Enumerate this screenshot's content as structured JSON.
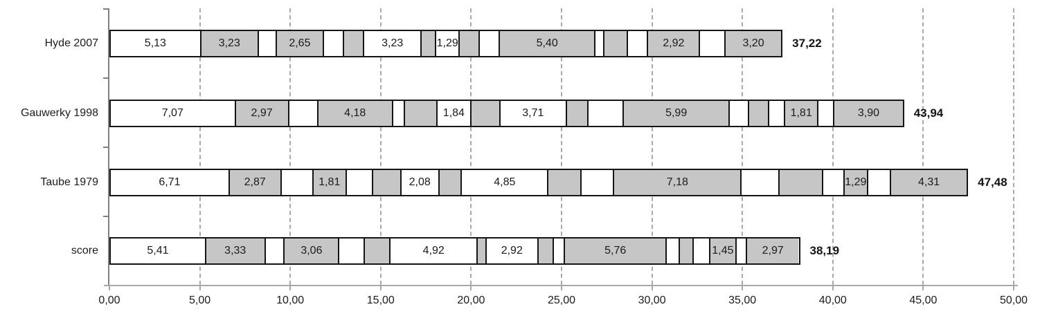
{
  "chart_data": {
    "type": "bar",
    "variant": "horizontal-stacked",
    "title": "",
    "xlabel": "",
    "ylabel": "",
    "xlim": [
      0,
      50
    ],
    "x_tick_values": [
      0,
      5,
      10,
      15,
      20,
      25,
      30,
      35,
      40,
      45,
      50
    ],
    "x_ticks": [
      "0,00",
      "5,00",
      "10,00",
      "15,00",
      "20,00",
      "25,00",
      "30,00",
      "35,00",
      "40,00",
      "45,00",
      "50,00"
    ],
    "grid": "vertical-dashed",
    "legend": "none",
    "colors": {
      "white_segment": "#ffffff",
      "gray_segment": "#c6c6c6",
      "segment_border": "#141414",
      "gridline": "#a9a9a9",
      "axis": "#a8a8a8",
      "text": "#1c1c1c"
    },
    "rows": [
      {
        "label": "Hyde 2007",
        "total": 37.22,
        "total_label": "37,22",
        "segments": [
          {
            "value": 5.13,
            "label": "5,13",
            "fill": "white"
          },
          {
            "value": 3.23,
            "label": "3,23",
            "fill": "gray"
          },
          {
            "value": 0.95,
            "label": "",
            "fill": "white"
          },
          {
            "value": 2.65,
            "label": "2,65",
            "fill": "gray"
          },
          {
            "value": 1.05,
            "label": "",
            "fill": "white"
          },
          {
            "value": 1.1,
            "label": "",
            "fill": "gray"
          },
          {
            "value": 3.23,
            "label": "3,23",
            "fill": "white"
          },
          {
            "value": 0.75,
            "label": "",
            "fill": "gray"
          },
          {
            "value": 1.29,
            "label": "1,29",
            "fill": "white"
          },
          {
            "value": 1.05,
            "label": "",
            "fill": "gray"
          },
          {
            "value": 1.1,
            "label": "",
            "fill": "white"
          },
          {
            "value": 5.4,
            "label": "5,40",
            "fill": "gray"
          },
          {
            "value": 0.45,
            "label": "",
            "fill": "white"
          },
          {
            "value": 1.25,
            "label": "",
            "fill": "gray"
          },
          {
            "value": 1.1,
            "label": "",
            "fill": "white"
          },
          {
            "value": 2.92,
            "label": "2,92",
            "fill": "gray"
          },
          {
            "value": 1.37,
            "label": "",
            "fill": "white"
          },
          {
            "value": 3.2,
            "label": "3,20",
            "fill": "gray"
          }
        ]
      },
      {
        "label": "Gauwerky 1998",
        "total": 43.94,
        "total_label": "43,94",
        "segments": [
          {
            "value": 7.07,
            "label": "7,07",
            "fill": "white"
          },
          {
            "value": 2.97,
            "label": "2,97",
            "fill": "gray"
          },
          {
            "value": 1.6,
            "label": "",
            "fill": "white"
          },
          {
            "value": 4.18,
            "label": "4,18",
            "fill": "gray"
          },
          {
            "value": 0.6,
            "label": "",
            "fill": "white"
          },
          {
            "value": 1.8,
            "label": "",
            "fill": "gray"
          },
          {
            "value": 1.84,
            "label": "1,84",
            "fill": "white"
          },
          {
            "value": 1.6,
            "label": "",
            "fill": "gray"
          },
          {
            "value": 3.71,
            "label": "3,71",
            "fill": "white"
          },
          {
            "value": 1.15,
            "label": "",
            "fill": "gray"
          },
          {
            "value": 1.95,
            "label": "",
            "fill": "white"
          },
          {
            "value": 5.99,
            "label": "5,99",
            "fill": "gray"
          },
          {
            "value": 1.0,
            "label": "",
            "fill": "white"
          },
          {
            "value": 1.1,
            "label": "",
            "fill": "gray"
          },
          {
            "value": 0.83,
            "label": "",
            "fill": "white"
          },
          {
            "value": 1.81,
            "label": "1,81",
            "fill": "gray"
          },
          {
            "value": 0.84,
            "label": "",
            "fill": "white"
          },
          {
            "value": 3.9,
            "label": "3,90",
            "fill": "gray"
          }
        ]
      },
      {
        "label": "Taube 1979",
        "total": 47.48,
        "total_label": "47,48",
        "segments": [
          {
            "value": 6.71,
            "label": "6,71",
            "fill": "white"
          },
          {
            "value": 2.87,
            "label": "2,87",
            "fill": "gray"
          },
          {
            "value": 1.75,
            "label": "",
            "fill": "white"
          },
          {
            "value": 1.81,
            "label": "1,81",
            "fill": "gray"
          },
          {
            "value": 1.43,
            "label": "",
            "fill": "white"
          },
          {
            "value": 1.54,
            "label": "",
            "fill": "gray"
          },
          {
            "value": 2.08,
            "label": "2,08",
            "fill": "white"
          },
          {
            "value": 1.22,
            "label": "",
            "fill": "gray"
          },
          {
            "value": 4.85,
            "label": "4,85",
            "fill": "white"
          },
          {
            "value": 1.8,
            "label": "",
            "fill": "gray"
          },
          {
            "value": 1.8,
            "label": "",
            "fill": "white"
          },
          {
            "value": 7.18,
            "label": "7,18",
            "fill": "gray"
          },
          {
            "value": 2.07,
            "label": "",
            "fill": "white"
          },
          {
            "value": 2.44,
            "label": "",
            "fill": "gray"
          },
          {
            "value": 1.11,
            "label": "",
            "fill": "white"
          },
          {
            "value": 1.29,
            "label": "1,29",
            "fill": "gray"
          },
          {
            "value": 1.22,
            "label": "",
            "fill": "white"
          },
          {
            "value": 4.31,
            "label": "4,31",
            "fill": "gray"
          }
        ]
      },
      {
        "label": "score",
        "total": 38.19,
        "total_label": "38,19",
        "segments": [
          {
            "value": 5.41,
            "label": "5,41",
            "fill": "white"
          },
          {
            "value": 3.33,
            "label": "3,33",
            "fill": "gray"
          },
          {
            "value": 1.03,
            "label": "",
            "fill": "white"
          },
          {
            "value": 3.06,
            "label": "3,06",
            "fill": "gray"
          },
          {
            "value": 1.37,
            "label": "",
            "fill": "white"
          },
          {
            "value": 1.42,
            "label": "",
            "fill": "gray"
          },
          {
            "value": 4.92,
            "label": "4,92",
            "fill": "white"
          },
          {
            "value": 0.42,
            "label": "",
            "fill": "gray"
          },
          {
            "value": 2.92,
            "label": "2,92",
            "fill": "white"
          },
          {
            "value": 0.81,
            "label": "",
            "fill": "gray"
          },
          {
            "value": 0.56,
            "label": "",
            "fill": "white"
          },
          {
            "value": 5.76,
            "label": "5,76",
            "fill": "gray"
          },
          {
            "value": 0.67,
            "label": "",
            "fill": "white"
          },
          {
            "value": 0.72,
            "label": "",
            "fill": "gray"
          },
          {
            "value": 0.86,
            "label": "",
            "fill": "white"
          },
          {
            "value": 1.45,
            "label": "1,45",
            "fill": "gray"
          },
          {
            "value": 0.51,
            "label": "",
            "fill": "white"
          },
          {
            "value": 2.97,
            "label": "2,97",
            "fill": "gray"
          }
        ]
      }
    ]
  }
}
